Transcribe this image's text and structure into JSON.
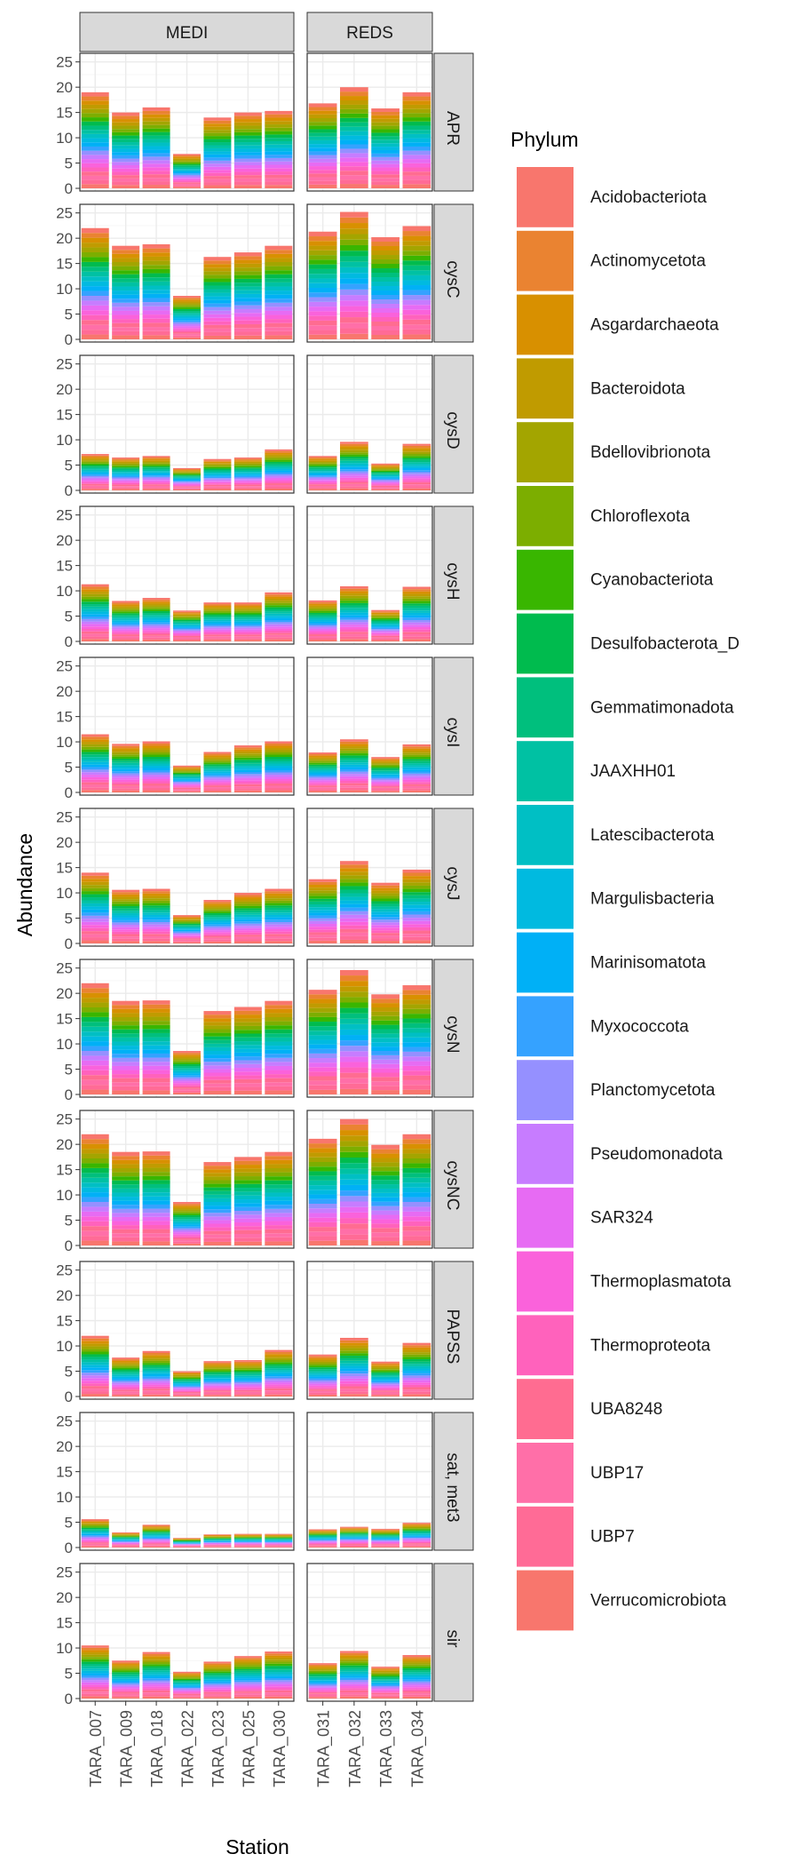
{
  "chart_data": {
    "type": "bar",
    "stacked": true,
    "facet_columns": [
      "MEDI",
      "REDS"
    ],
    "facet_rows": [
      "APR",
      "cysC",
      "cysD",
      "cysH",
      "cysI",
      "cysJ",
      "cysN",
      "cysNC",
      "PAPSS",
      "sat, met3",
      "sir"
    ],
    "categories_by_column": {
      "MEDI": [
        "TARA_007",
        "TARA_009",
        "TARA_018",
        "TARA_022",
        "TARA_023",
        "TARA_025",
        "TARA_030"
      ],
      "REDS": [
        "TARA_031",
        "TARA_032",
        "TARA_033",
        "TARA_034"
      ]
    },
    "xlabel": "Station",
    "ylabel": "Abundance",
    "ylim": [
      0,
      26
    ],
    "yticks": [
      0,
      5,
      10,
      15,
      20,
      25
    ],
    "grid": true,
    "legend": {
      "title": "Phylum",
      "placement": "right",
      "entries": [
        {
          "name": "Acidobacteriota",
          "color": "#F8766D"
        },
        {
          "name": "Actinomycetota",
          "color": "#EA8331"
        },
        {
          "name": "Asgardarchaeota",
          "color": "#D89000"
        },
        {
          "name": "Bacteroidota",
          "color": "#C09B00"
        },
        {
          "name": "Bdellovibrionota",
          "color": "#A3A500"
        },
        {
          "name": "Chloroflexota",
          "color": "#7CAE00"
        },
        {
          "name": "Cyanobacteriota",
          "color": "#39B600"
        },
        {
          "name": "Desulfobacterota_D",
          "color": "#00BB4E"
        },
        {
          "name": "Gemmatimonadota",
          "color": "#00BF7D"
        },
        {
          "name": "JAAXHH01",
          "color": "#00C1A3"
        },
        {
          "name": "Latescibacterota",
          "color": "#00BFC4"
        },
        {
          "name": "Margulisbacteria",
          "color": "#00BAE0"
        },
        {
          "name": "Marinisomatota",
          "color": "#00B0F6"
        },
        {
          "name": "Myxococcota",
          "color": "#35A2FF"
        },
        {
          "name": "Planctomycetota",
          "color": "#9590FF"
        },
        {
          "name": "Pseudomonadota",
          "color": "#C77CFF"
        },
        {
          "name": "SAR324",
          "color": "#E76BF3"
        },
        {
          "name": "Thermoplasmatota",
          "color": "#FA62DB"
        },
        {
          "name": "Thermoproteota",
          "color": "#FF62BC"
        },
        {
          "name": "UBA8248",
          "color": "#FF6C91"
        },
        {
          "name": "UBP17",
          "color": "#FF6FA8"
        },
        {
          "name": "UBP7",
          "color": "#FF6B96"
        },
        {
          "name": "Verrucomicrobiota",
          "color": "#F8766D"
        }
      ]
    },
    "totals": {
      "APR": {
        "MEDI": [
          19,
          15,
          16,
          6.8,
          14,
          15,
          15.3
        ],
        "REDS": [
          16.8,
          20,
          15.8,
          19
        ]
      },
      "cysC": {
        "MEDI": [
          22,
          18.5,
          18.8,
          8.6,
          16.3,
          17.2,
          18.5
        ],
        "REDS": [
          21.3,
          25.2,
          20.2,
          22.4
        ]
      },
      "cysD": {
        "MEDI": [
          7.2,
          6.5,
          6.8,
          4.4,
          6.2,
          6.5,
          8.1
        ],
        "REDS": [
          6.8,
          9.6,
          5.3,
          9.2
        ]
      },
      "cysH": {
        "MEDI": [
          11.3,
          8,
          8.6,
          6.1,
          7.7,
          7.7,
          9.7
        ],
        "REDS": [
          8.1,
          10.9,
          6.2,
          10.8
        ]
      },
      "cysI": {
        "MEDI": [
          11.5,
          9.6,
          10.1,
          5.3,
          8,
          9.3,
          10.1
        ],
        "REDS": [
          7.9,
          10.5,
          7,
          9.5
        ]
      },
      "cysJ": {
        "MEDI": [
          14,
          10.6,
          10.8,
          5.6,
          8.6,
          10,
          10.8
        ],
        "REDS": [
          12.7,
          16.3,
          12,
          14.6
        ]
      },
      "cysN": {
        "MEDI": [
          22,
          18.5,
          18.6,
          8.6,
          16.5,
          17.3,
          18.5
        ],
        "REDS": [
          20.7,
          24.6,
          19.8,
          21.6
        ]
      },
      "cysNC": {
        "MEDI": [
          22,
          18.5,
          18.6,
          8.6,
          16.5,
          17.5,
          18.5
        ],
        "REDS": [
          21.1,
          25,
          19.9,
          22
        ]
      },
      "PAPSS": {
        "MEDI": [
          12,
          7.7,
          9,
          5,
          7,
          7.2,
          9.2
        ],
        "REDS": [
          8.3,
          11.6,
          6.9,
          10.6
        ]
      },
      "sat, met3": {
        "MEDI": [
          5.6,
          3,
          4.5,
          1.9,
          2.6,
          2.7,
          2.7
        ],
        "REDS": [
          3.6,
          4.1,
          3.7,
          4.9
        ]
      },
      "sir": {
        "MEDI": [
          10.5,
          7.5,
          9.2,
          5.3,
          7.3,
          8.4,
          9.3
        ],
        "REDS": [
          7,
          9.4,
          6.3,
          8.6
        ]
      }
    }
  }
}
